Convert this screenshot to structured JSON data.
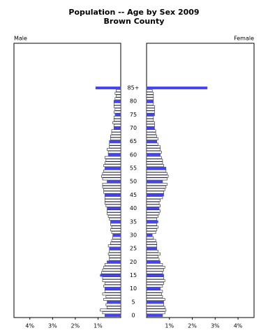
{
  "chart_data": {
    "type": "pyramid",
    "title": "Population -- Age by Sex 2009",
    "subtitle": "Brown County",
    "categories": [
      "0",
      null,
      null,
      null,
      null,
      "5",
      null,
      null,
      null,
      null,
      "10",
      null,
      null,
      null,
      null,
      "15",
      null,
      null,
      null,
      null,
      "20",
      null,
      null,
      null,
      null,
      "25",
      null,
      null,
      null,
      null,
      "30",
      null,
      null,
      null,
      null,
      "35",
      null,
      null,
      null,
      null,
      "40",
      null,
      null,
      null,
      null,
      "45",
      null,
      null,
      null,
      null,
      "50",
      null,
      null,
      null,
      null,
      "55",
      null,
      null,
      null,
      null,
      "60",
      null,
      null,
      null,
      null,
      "65",
      null,
      null,
      null,
      null,
      "70",
      null,
      null,
      null,
      null,
      "75",
      null,
      null,
      null,
      null,
      "80",
      null,
      null,
      null,
      null,
      "85+"
    ],
    "series": [
      {
        "name": "Male",
        "color": "#ffffff",
        "values": [
          0.7,
          0.8,
          0.9,
          0.6,
          0.65,
          0.6,
          0.75,
          0.65,
          0.8,
          0.7,
          0.7,
          0.75,
          0.7,
          0.8,
          0.8,
          0.9,
          0.85,
          0.8,
          0.75,
          0.7,
          0.6,
          0.5,
          0.5,
          0.55,
          0.5,
          0.5,
          0.55,
          0.45,
          0.4,
          0.35,
          0.35,
          0.4,
          0.45,
          0.4,
          0.45,
          0.45,
          0.5,
          0.55,
          0.6,
          0.6,
          0.6,
          0.65,
          0.7,
          0.7,
          0.7,
          0.7,
          0.75,
          0.75,
          0.8,
          0.8,
          0.6,
          0.8,
          0.85,
          0.8,
          0.75,
          0.7,
          0.75,
          0.7,
          0.65,
          0.7,
          0.55,
          0.55,
          0.6,
          0.5,
          0.5,
          0.5,
          0.45,
          0.45,
          0.4,
          0.4,
          0.3,
          0.3,
          0.35,
          0.3,
          0.3,
          0.25,
          0.3,
          0.25,
          0.3,
          0.3,
          0.3,
          0.25,
          0.2,
          0.25,
          0.2,
          1.1
        ]
      },
      {
        "name": "Female",
        "color": "#ffffff",
        "values": [
          0.7,
          0.8,
          0.85,
          0.8,
          0.75,
          0.75,
          0.8,
          0.7,
          0.65,
          0.7,
          0.6,
          0.7,
          0.75,
          0.8,
          0.75,
          0.75,
          0.7,
          0.75,
          0.8,
          0.7,
          0.6,
          0.55,
          0.5,
          0.6,
          0.5,
          0.45,
          0.45,
          0.45,
          0.4,
          0.3,
          0.25,
          0.4,
          0.45,
          0.5,
          0.45,
          0.5,
          0.45,
          0.5,
          0.55,
          0.6,
          0.55,
          0.6,
          0.55,
          0.6,
          0.7,
          0.75,
          0.75,
          0.8,
          0.85,
          0.9,
          0.7,
          0.9,
          0.95,
          0.9,
          0.85,
          0.85,
          0.75,
          0.7,
          0.7,
          0.65,
          0.6,
          0.65,
          0.6,
          0.6,
          0.5,
          0.45,
          0.5,
          0.45,
          0.4,
          0.4,
          0.35,
          0.35,
          0.35,
          0.3,
          0.3,
          0.35,
          0.35,
          0.35,
          0.35,
          0.3,
          0.3,
          0.3,
          0.3,
          0.3,
          0.25,
          2.65
        ]
      }
    ],
    "highlight_color": "#4444ee",
    "xlim": [
      0,
      4.7
    ],
    "xticks": [
      {
        "value": 1,
        "label": "1%"
      },
      {
        "value": 2,
        "label": "2%"
      },
      {
        "value": 3,
        "label": "3%"
      },
      {
        "value": 4,
        "label": "4%"
      }
    ]
  }
}
